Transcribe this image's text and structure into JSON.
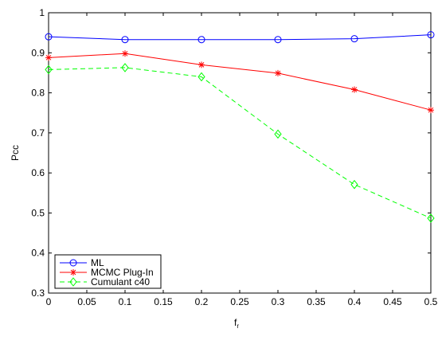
{
  "chart_data": {
    "type": "line",
    "title": "",
    "xlabel": "f",
    "xlabel_subscript": "r",
    "ylabel": "Pcc",
    "xlim": [
      0,
      0.5
    ],
    "ylim": [
      0.3,
      1
    ],
    "x_ticks": [
      0,
      0.05,
      0.1,
      0.15,
      0.2,
      0.25,
      0.3,
      0.35,
      0.4,
      0.45,
      0.5
    ],
    "x_tick_labels": [
      "0",
      "0.05",
      "0.1",
      "0.15",
      "0.2",
      "0.25",
      "0.3",
      "0.35",
      "0.4",
      "0.45",
      "0.5"
    ],
    "y_ticks": [
      0.3,
      0.4,
      0.5,
      0.6,
      0.7,
      0.8,
      0.9,
      1
    ],
    "y_tick_labels": [
      "0.3",
      "0.4",
      "0.5",
      "0.6",
      "0.7",
      "0.8",
      "0.9",
      "1"
    ],
    "grid": false,
    "legend_position": "bottom-left",
    "x": [
      0,
      0.1,
      0.2,
      0.3,
      0.4,
      0.5
    ],
    "series": [
      {
        "name": "ML",
        "values": [
          0.94,
          0.933,
          0.933,
          0.933,
          0.935,
          0.945
        ],
        "color": "#0000ff",
        "line_style": "solid",
        "marker": "circle"
      },
      {
        "name": "MCMC Plug-In",
        "values": [
          0.888,
          0.898,
          0.87,
          0.849,
          0.808,
          0.757
        ],
        "color": "#ff0000",
        "line_style": "solid",
        "marker": "star"
      },
      {
        "name": "Cumulant c40",
        "values": [
          0.858,
          0.863,
          0.84,
          0.697,
          0.571,
          0.487
        ],
        "color": "#00ff00",
        "line_style": "dashed",
        "marker": "diamond"
      }
    ]
  }
}
